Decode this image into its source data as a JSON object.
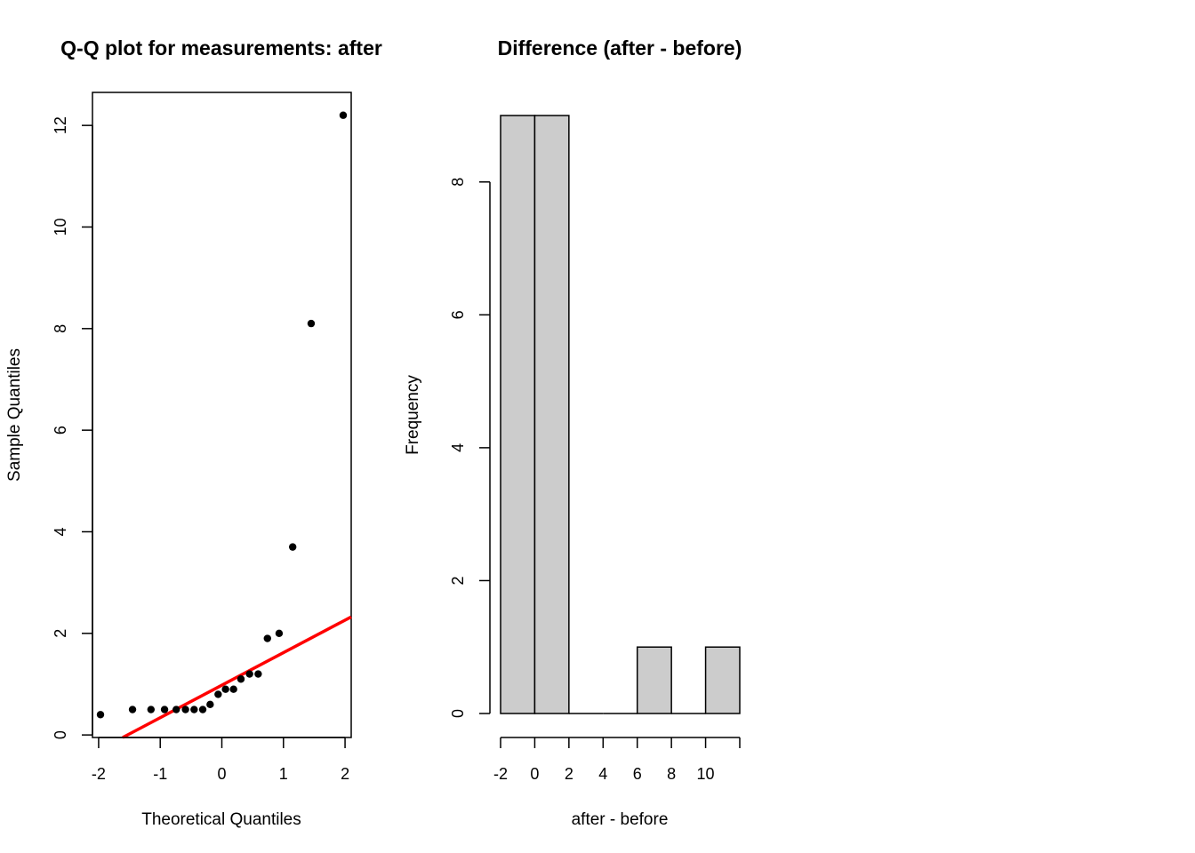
{
  "chart_data": [
    {
      "type": "scatter",
      "title": "Q-Q plot for measurements: after",
      "xlabel": "Theoretical Quantiles",
      "ylabel": "Sample Quantiles",
      "xlim": [
        -2.1,
        2.1
      ],
      "ylim": [
        -0.05,
        12.65
      ],
      "xticks": [
        -2,
        -1,
        0,
        1,
        2
      ],
      "xtick_labels": [
        "-2",
        "-1",
        "0",
        "1",
        "2"
      ],
      "yticks": [
        0,
        2,
        4,
        6,
        8,
        10,
        12
      ],
      "ytick_labels": [
        "0",
        "2",
        "4",
        "6",
        "8",
        "10",
        "12"
      ],
      "points": [
        {
          "x": -1.97,
          "y": 0.4
        },
        {
          "x": -1.45,
          "y": 0.5
        },
        {
          "x": -1.15,
          "y": 0.5
        },
        {
          "x": -0.93,
          "y": 0.5
        },
        {
          "x": -0.74,
          "y": 0.5
        },
        {
          "x": -0.59,
          "y": 0.5
        },
        {
          "x": -0.45,
          "y": 0.5
        },
        {
          "x": -0.31,
          "y": 0.5
        },
        {
          "x": -0.19,
          "y": 0.6
        },
        {
          "x": -0.06,
          "y": 0.8
        },
        {
          "x": 0.06,
          "y": 0.9
        },
        {
          "x": 0.19,
          "y": 0.9
        },
        {
          "x": 0.31,
          "y": 1.1
        },
        {
          "x": 0.45,
          "y": 1.2
        },
        {
          "x": 0.59,
          "y": 1.2
        },
        {
          "x": 0.74,
          "y": 1.9
        },
        {
          "x": 0.93,
          "y": 2.0
        },
        {
          "x": 1.15,
          "y": 3.7
        },
        {
          "x": 1.45,
          "y": 8.1
        },
        {
          "x": 1.97,
          "y": 12.2
        }
      ],
      "reference_line": {
        "intercept": 0.98,
        "slope": 0.64,
        "color": "#ff0000"
      },
      "point_color": "#000000",
      "grid": false
    },
    {
      "type": "bar",
      "title": "Difference (after - before)",
      "xlabel": "after - before",
      "ylabel": "Frequency",
      "bin_edges": [
        -2,
        0,
        2,
        4,
        6,
        8,
        10,
        12
      ],
      "values": [
        9,
        9,
        0,
        0,
        1,
        0,
        1
      ],
      "xlim": [
        -2,
        12
      ],
      "xticks": [
        -2,
        0,
        2,
        4,
        6,
        8,
        10
      ],
      "xtick_labels": [
        "-2",
        "0",
        "2",
        "4",
        "6",
        "8",
        "10"
      ],
      "yticks": [
        0,
        2,
        4,
        6,
        8
      ],
      "ytick_labels": [
        "0",
        "2",
        "4",
        "6",
        "8"
      ],
      "bar_color": "#cccccc",
      "grid": false
    }
  ]
}
